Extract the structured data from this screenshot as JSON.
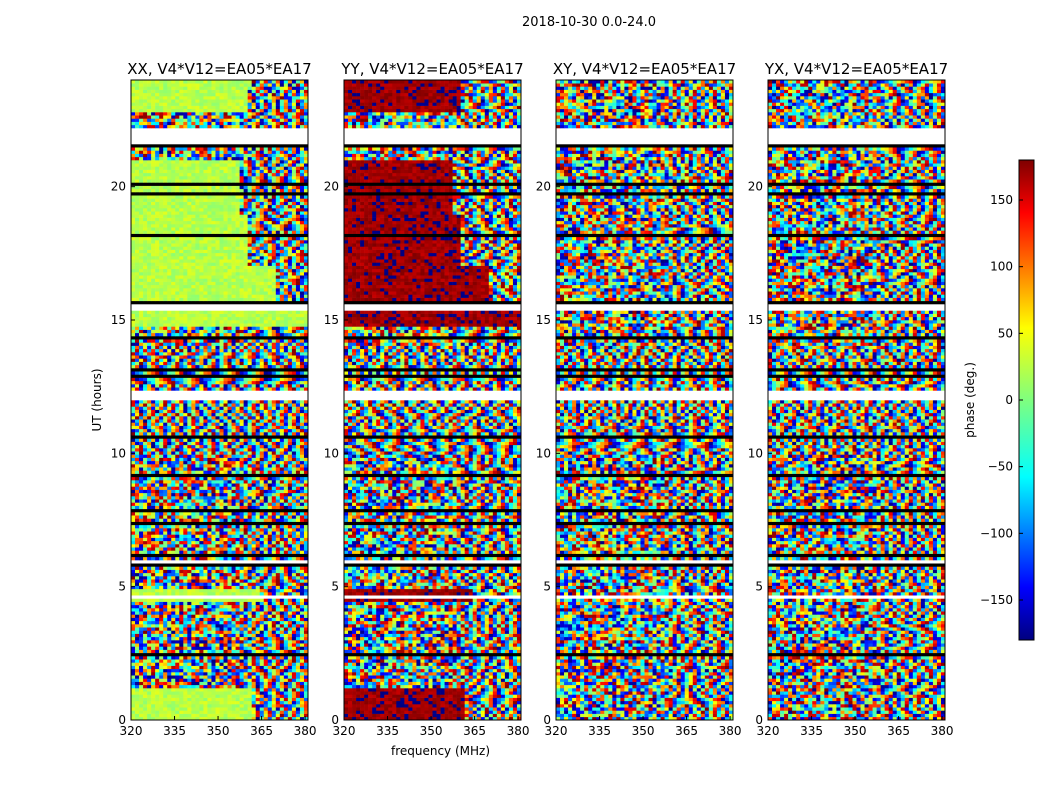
{
  "figure_title": "2018-10-30 0.0-24.0",
  "colors": {
    "flag_lines": "#000000",
    "gap_rows": "#ffffff",
    "jet": [
      "#00007f",
      "#0000ff",
      "#007fff",
      "#00ffff",
      "#7fff7f",
      "#ffff00",
      "#ff7f00",
      "#ff0000",
      "#7f0000"
    ]
  },
  "chart_data": [
    {
      "type": "heatmap",
      "title": "XX, V4*V12=EA05*EA17",
      "xlabel": "",
      "ylabel": "UT (hours)",
      "xlim": [
        320,
        381
      ],
      "ylim": [
        0,
        24
      ],
      "xticks": [
        "320",
        "335",
        "350",
        "365",
        "380"
      ],
      "yticks": [
        "0",
        "5",
        "10",
        "15",
        "20"
      ],
      "z": "phase (deg.)",
      "mode": "coherent_green",
      "phase_offset_deg": 20
    },
    {
      "type": "heatmap",
      "title": "YY, V4*V12=EA05*EA17",
      "xlabel": "frequency (MHz)",
      "ylabel": "",
      "xlim": [
        320,
        381
      ],
      "ylim": [
        0,
        24
      ],
      "xticks": [
        "320",
        "335",
        "350",
        "365",
        "380"
      ],
      "yticks": [
        "0",
        "5",
        "10",
        "15",
        "20"
      ],
      "z": "phase (deg.)",
      "mode": "coherent_red",
      "phase_offset_deg": 170
    },
    {
      "type": "heatmap",
      "title": "XY, V4*V12=EA05*EA17",
      "xlabel": "",
      "ylabel": "",
      "xlim": [
        320,
        381
      ],
      "ylim": [
        0,
        24
      ],
      "xticks": [
        "320",
        "335",
        "350",
        "365",
        "380"
      ],
      "yticks": [
        "0",
        "5",
        "10",
        "15",
        "20"
      ],
      "z": "phase (deg.)",
      "mode": "noise",
      "phase_offset_deg": 0
    },
    {
      "type": "heatmap",
      "title": "YX, V4*V12=EA05*EA17",
      "xlabel": "",
      "ylabel": "",
      "xlim": [
        320,
        381
      ],
      "ylim": [
        0,
        24
      ],
      "xticks": [
        "320",
        "335",
        "350",
        "365",
        "380"
      ],
      "yticks": [
        "0",
        "5",
        "10",
        "15",
        "20"
      ],
      "z": "phase (deg.)",
      "mode": "noise",
      "phase_offset_deg": 0
    }
  ],
  "colorbar": {
    "label": "phase (deg.)",
    "range": [
      -180,
      180
    ],
    "ticks": [
      "150",
      "100",
      "50",
      "0",
      "−50",
      "−100",
      "−150"
    ],
    "tick_values": [
      150,
      100,
      50,
      0,
      -50,
      -100,
      -150
    ]
  },
  "flagged_hours": [
    [
      21.6,
      22.15
    ],
    [
      15.35,
      15.55
    ],
    [
      12.0,
      12.3
    ],
    [
      5.9,
      6.05
    ],
    [
      4.55,
      4.7
    ]
  ],
  "coherent_segments": [
    {
      "from": 0.0,
      "to": 0.8,
      "cut_freq": 362
    },
    {
      "from": 0.8,
      "to": 1.2,
      "cut_freq": 362
    },
    {
      "from": 4.4,
      "to": 4.9,
      "cut_freq": 364
    },
    {
      "from": 14.8,
      "to": 15.3,
      "cut_freq": 381
    },
    {
      "from": 15.6,
      "to": 17.0,
      "cut_freq": 370
    },
    {
      "from": 17.0,
      "to": 19.0,
      "cut_freq": 360
    },
    {
      "from": 19.0,
      "to": 21.0,
      "cut_freq": 358
    },
    {
      "from": 22.8,
      "to": 24.0,
      "cut_freq": 360
    }
  ]
}
